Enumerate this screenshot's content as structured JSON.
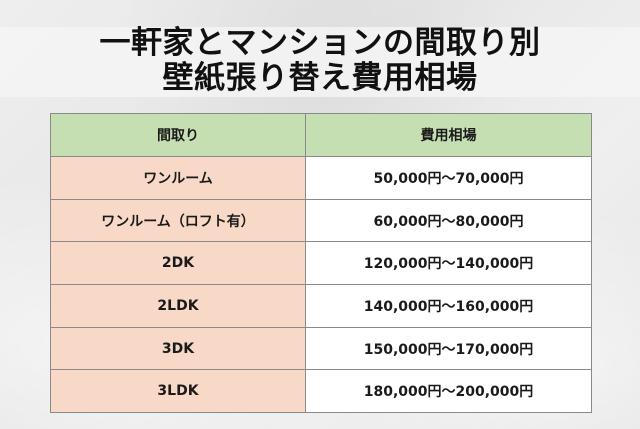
{
  "title": {
    "line1": "一軒家とマンションの間取り別",
    "line2": "壁紙張り替え費用相場"
  },
  "table": {
    "headers": {
      "layout": "間取り",
      "price": "費用相場"
    },
    "rows": [
      {
        "layout": "ワンルーム",
        "price": "50,000円～70,000円"
      },
      {
        "layout": "ワンルーム（ロフト有）",
        "price": "60,000円～80,000円"
      },
      {
        "layout": "2DK",
        "price": "120,000円～140,000円"
      },
      {
        "layout": "2LDK",
        "price": "140,000円～160,000円"
      },
      {
        "layout": "3DK",
        "price": "150,000円～170,000円"
      },
      {
        "layout": "3LDK",
        "price": "180,000円～200,000円"
      }
    ]
  },
  "colors": {
    "header_background": "#c5dfb3",
    "layout_cell_background": "#f8d9c7",
    "price_cell_background": "#ffffff",
    "page_background": "#ececec"
  }
}
